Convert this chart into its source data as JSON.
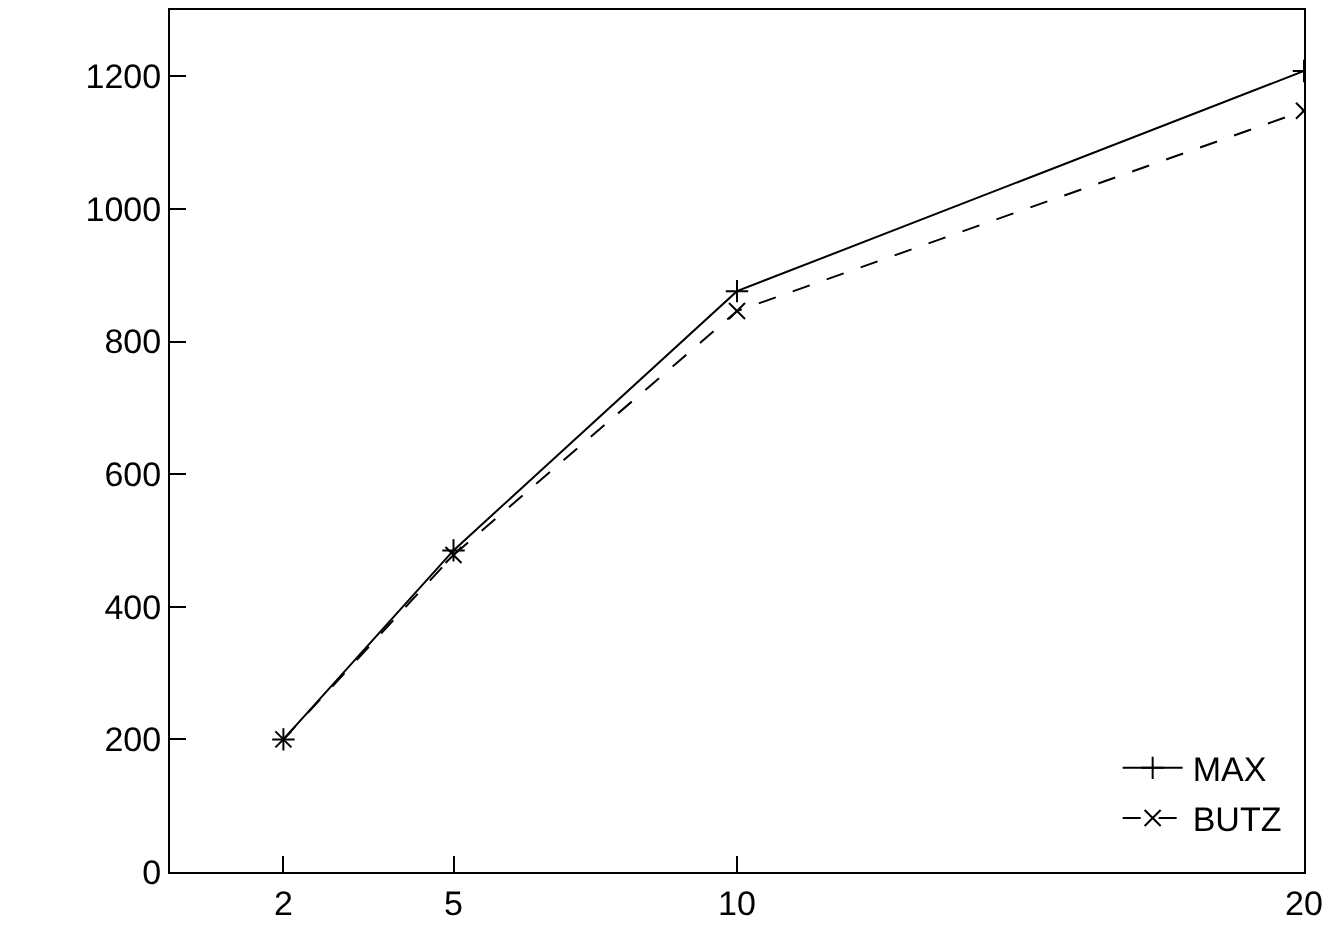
{
  "chart_data": {
    "type": "line",
    "x": [
      2,
      5,
      10,
      20
    ],
    "series": [
      {
        "name": "MAX",
        "color": "#000000",
        "values": [
          200,
          485,
          876,
          1208
        ],
        "marker": "cross",
        "line_style": "solid"
      },
      {
        "name": "BUTZ",
        "color": "#000000",
        "values": [
          200,
          478,
          846,
          1148
        ],
        "marker": "x",
        "line_style": "dashed"
      }
    ],
    "xlim": [
      0,
      20
    ],
    "xticks": [
      2,
      5,
      10,
      20
    ],
    "ylim": [
      0,
      1300
    ],
    "yticks": [
      0,
      200,
      400,
      600,
      800,
      1000,
      1200
    ],
    "grid": false,
    "legend": "bottom right"
  }
}
